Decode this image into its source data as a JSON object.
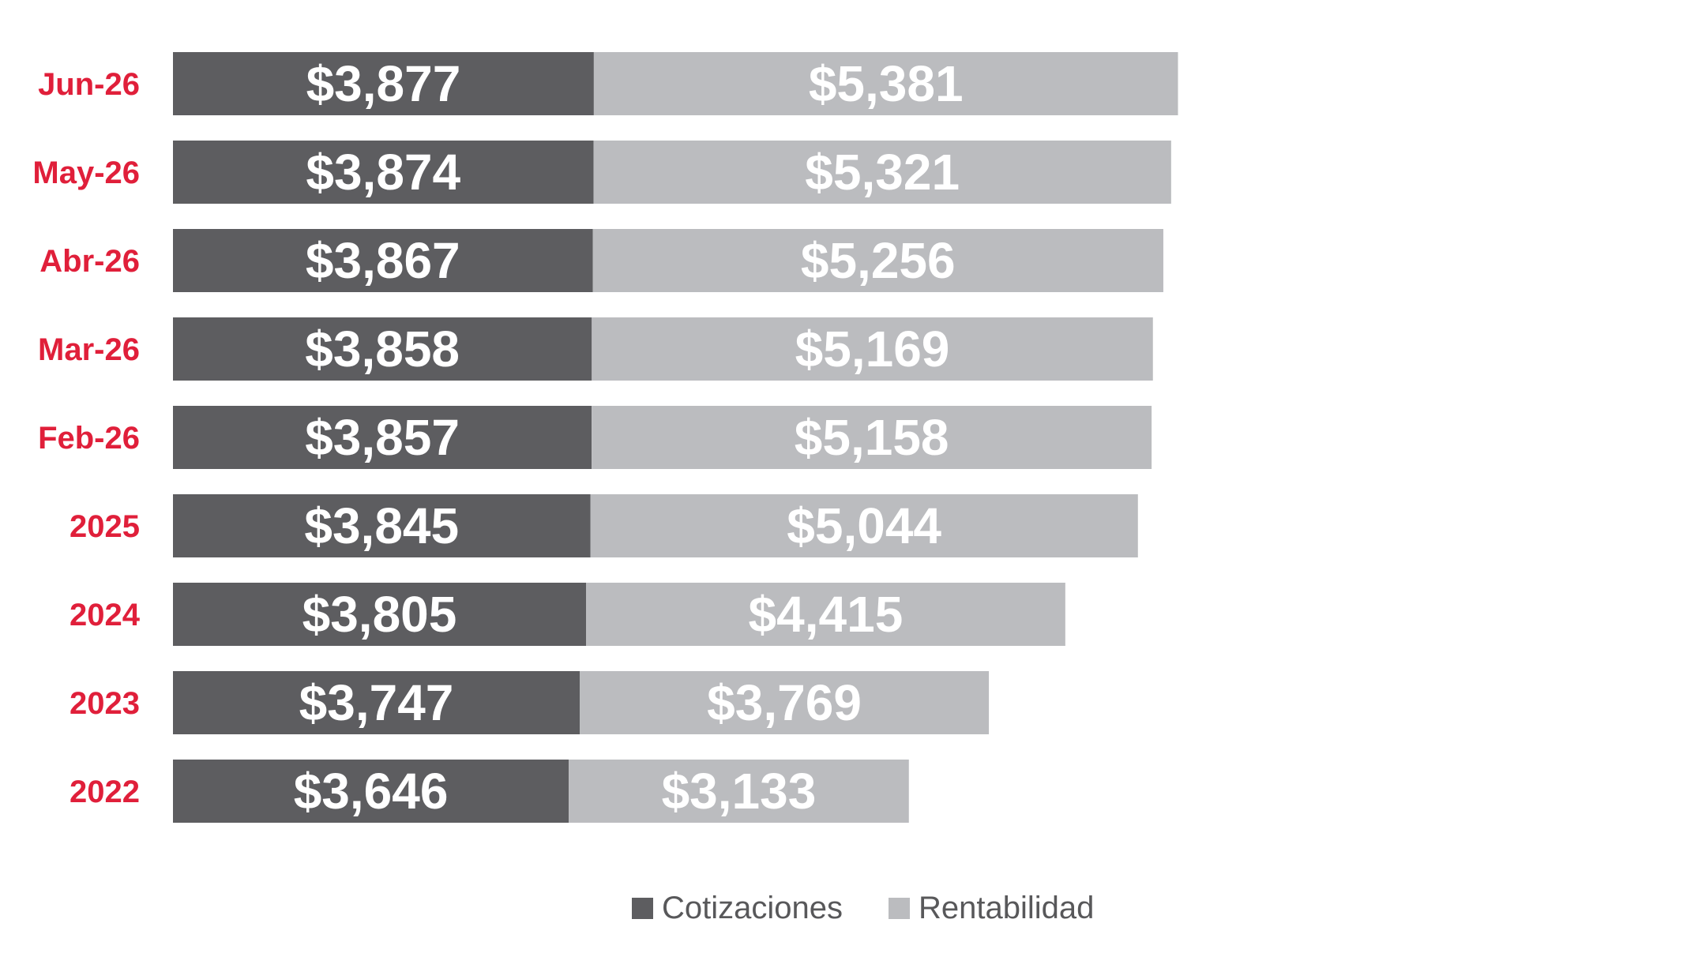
{
  "colors": {
    "category_label": "#e01f3a",
    "series_dark": "#5d5d60",
    "series_light": "#bbbcbf",
    "bar_label": "#ffffff",
    "legend_text": "#58585a"
  },
  "chart_data": {
    "type": "bar",
    "orientation": "horizontal",
    "stacked": true,
    "categories": [
      "Jun-26",
      "May-26",
      "Abr-26",
      "Mar-26",
      "Feb-26",
      "2025",
      "2024",
      "2023",
      "2022"
    ],
    "series": [
      {
        "name": "Cotizaciones",
        "color": "#5d5d60",
        "values": [
          3877,
          3874,
          3867,
          3858,
          3857,
          3845,
          3805,
          3747,
          3646
        ],
        "labels": [
          "$3,877",
          "$3,874",
          "$3,867",
          "$3,858",
          "$3,857",
          "$3,845",
          "$3,805",
          "$3,747",
          "$3,646"
        ]
      },
      {
        "name": "Rentabilidad",
        "color": "#bbbcbf",
        "values": [
          5381,
          5321,
          5256,
          5169,
          5158,
          5044,
          4415,
          3769,
          3133
        ],
        "labels": [
          "$5,381",
          "$5,321",
          "$5,256",
          "$5,169",
          "$5,158",
          "$5,044",
          "$4,415",
          "$3,769",
          "$3,133"
        ]
      }
    ],
    "legend_position": "bottom-center",
    "grid": false,
    "axis_visible": false
  }
}
